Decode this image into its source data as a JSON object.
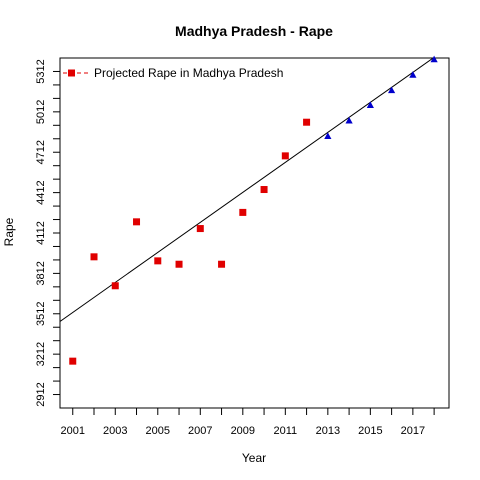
{
  "chart_data": {
    "type": "scatter",
    "title": "Madhya Pradesh  -  Rape",
    "xlabel": "Year",
    "ylabel": "Rape",
    "xlim": [
      2000.4,
      2018.7
    ],
    "ylim": [
      2812,
      5412
    ],
    "x_ticks": [
      2001,
      2002,
      2003,
      2004,
      2005,
      2006,
      2007,
      2008,
      2009,
      2010,
      2011,
      2012,
      2013,
      2014,
      2015,
      2016,
      2017,
      2018
    ],
    "x_tick_labels": [
      "2001",
      "2003",
      "2005",
      "2007",
      "2009",
      "2011",
      "2013",
      "2015",
      "2017"
    ],
    "y_ticks": [
      2912,
      3012,
      3112,
      3212,
      3312,
      3412,
      3512,
      3612,
      3712,
      3812,
      3912,
      4012,
      4112,
      4212,
      4312,
      4412,
      4512,
      4612,
      4712,
      4812,
      4912,
      5012,
      5112,
      5212,
      5312
    ],
    "y_tick_labels": [
      "2912",
      "3212",
      "3512",
      "3812",
      "4112",
      "4412",
      "4712",
      "5012",
      "5312"
    ],
    "legend": {
      "position": "top-left",
      "entries": [
        {
          "label": "Projected  Rape  in  Madhya Pradesh",
          "color": "#e00000",
          "marker": "square",
          "line": "dashed"
        }
      ]
    },
    "series": [
      {
        "marker": "square",
        "color": "#e00000",
        "x": [
          2001,
          2002,
          2003,
          2004,
          2005,
          2006,
          2007,
          2008,
          2009,
          2010,
          2011,
          2012
        ],
        "y": [
          3160,
          3935,
          3720,
          4195,
          3905,
          3880,
          4145,
          3880,
          4265,
          4435,
          4685,
          4935
        ]
      },
      {
        "marker": "triangle",
        "color": "#0000cc",
        "x": [
          2013,
          2014,
          2015,
          2016,
          2017,
          2018
        ],
        "y": [
          4830,
          4945,
          5060,
          5170,
          5285,
          5400
        ]
      }
    ],
    "trend_line": {
      "color": "#000000",
      "x": [
        2000.4,
        2018.7
      ],
      "y": [
        3455,
        5495
      ]
    }
  }
}
